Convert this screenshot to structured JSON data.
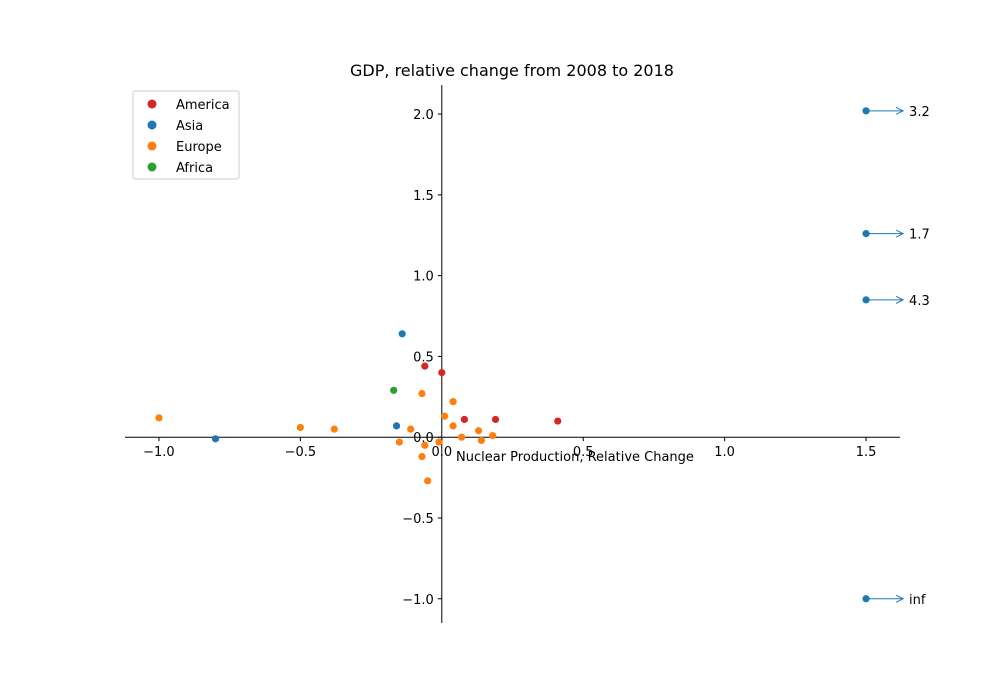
{
  "chart_data": {
    "type": "scatter",
    "title": "GDP, relative change from 2008 to 2018",
    "xlabel": "Nuclear Production, Relative Change",
    "ylabel": "",
    "xlim": [
      -1.12,
      1.62
    ],
    "ylim": [
      -1.15,
      2.18
    ],
    "xticks": [
      -1.0,
      -0.5,
      0.0,
      0.5,
      1.0,
      1.5
    ],
    "xtick_labels": [
      "−1.0",
      "−0.5",
      "0.0",
      "0.5",
      "1.0",
      "1.5"
    ],
    "yticks": [
      -1.0,
      -0.5,
      0.0,
      0.5,
      1.0,
      1.5,
      2.0
    ],
    "ytick_labels": [
      "−1.0",
      "−0.5",
      "0.0",
      "0.5",
      "1.0",
      "1.5",
      "2.0"
    ],
    "grid": false,
    "legend_position": "top-left",
    "series": [
      {
        "name": "America",
        "color": "#d62728",
        "points": [
          {
            "x": -0.06,
            "y": 0.44
          },
          {
            "x": 0.0,
            "y": 0.4
          },
          {
            "x": 0.08,
            "y": 0.11
          },
          {
            "x": 0.19,
            "y": 0.11
          },
          {
            "x": 0.41,
            "y": 0.1
          }
        ]
      },
      {
        "name": "Asia",
        "color": "#1f77b4",
        "points": [
          {
            "x": -0.14,
            "y": 0.64
          },
          {
            "x": -0.16,
            "y": 0.07
          },
          {
            "x": -0.8,
            "y": -0.01
          },
          {
            "x": 1.5,
            "y": 2.02
          },
          {
            "x": 1.5,
            "y": 1.26
          },
          {
            "x": 1.5,
            "y": 0.85
          },
          {
            "x": 1.5,
            "y": -1.0
          }
        ]
      },
      {
        "name": "Europe",
        "color": "#ff7f0e",
        "points": [
          {
            "x": -1.0,
            "y": 0.12
          },
          {
            "x": -0.5,
            "y": 0.06
          },
          {
            "x": -0.38,
            "y": 0.05
          },
          {
            "x": -0.07,
            "y": 0.27
          },
          {
            "x": 0.04,
            "y": 0.22
          },
          {
            "x": 0.01,
            "y": 0.13
          },
          {
            "x": 0.04,
            "y": 0.07
          },
          {
            "x": -0.11,
            "y": 0.05
          },
          {
            "x": 0.13,
            "y": 0.04
          },
          {
            "x": 0.18,
            "y": 0.01
          },
          {
            "x": 0.07,
            "y": 0.0
          },
          {
            "x": -0.15,
            "y": -0.03
          },
          {
            "x": -0.01,
            "y": -0.03
          },
          {
            "x": -0.06,
            "y": -0.05
          },
          {
            "x": 0.14,
            "y": -0.02
          },
          {
            "x": -0.07,
            "y": -0.12
          },
          {
            "x": -0.05,
            "y": -0.27
          }
        ]
      },
      {
        "name": "Africa",
        "color": "#2ca02c",
        "points": [
          {
            "x": -0.17,
            "y": 0.29
          }
        ]
      }
    ],
    "annotations": [
      {
        "text": "3.2",
        "x": 1.5,
        "y": 2.02
      },
      {
        "text": "1.7",
        "x": 1.5,
        "y": 1.26
      },
      {
        "text": "4.3",
        "x": 1.5,
        "y": 0.85
      },
      {
        "text": "inf",
        "x": 1.5,
        "y": -1.0
      }
    ],
    "annotation_color": "#1f77b4"
  }
}
